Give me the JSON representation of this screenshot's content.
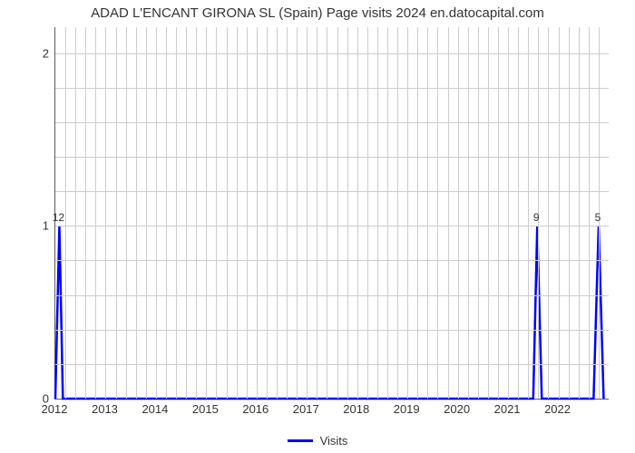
{
  "title": "ADAD L'ENCANT GIRONA SL (Spain) Page visits 2024 en.datocapital.com",
  "chart": {
    "type": "line",
    "background_color": "#ffffff",
    "grid_color": "#cccccc",
    "axis_color": "#5b5b5b",
    "title_fontsize": 15,
    "tick_fontsize": 13,
    "x": {
      "min": 2012,
      "max": 2023,
      "ticks": [
        2012,
        2013,
        2014,
        2015,
        2016,
        2017,
        2018,
        2019,
        2020,
        2021,
        2022
      ],
      "minor_per_major": 4
    },
    "y": {
      "min": 0,
      "max": 2.15,
      "ticks": [
        0,
        1,
        2
      ],
      "minor_per_major": 4
    },
    "series": {
      "name": "Visits",
      "color": "#0000ff",
      "line_width": 2.5,
      "points": [
        {
          "x": 2012.0,
          "y": 0
        },
        {
          "x": 2012.08,
          "y": 1
        },
        {
          "x": 2012.15,
          "y": 0
        },
        {
          "x": 2021.5,
          "y": 0
        },
        {
          "x": 2021.58,
          "y": 1
        },
        {
          "x": 2021.67,
          "y": 0
        },
        {
          "x": 2022.7,
          "y": 0
        },
        {
          "x": 2022.8,
          "y": 1
        },
        {
          "x": 2022.9,
          "y": 0
        }
      ],
      "data_labels": [
        {
          "x": 2012.08,
          "y": 1,
          "text": "12"
        },
        {
          "x": 2021.58,
          "y": 1,
          "text": "9"
        },
        {
          "x": 2022.8,
          "y": 1,
          "text": "5"
        }
      ]
    },
    "legend": {
      "label": "Visits",
      "position": "bottom-center"
    }
  }
}
